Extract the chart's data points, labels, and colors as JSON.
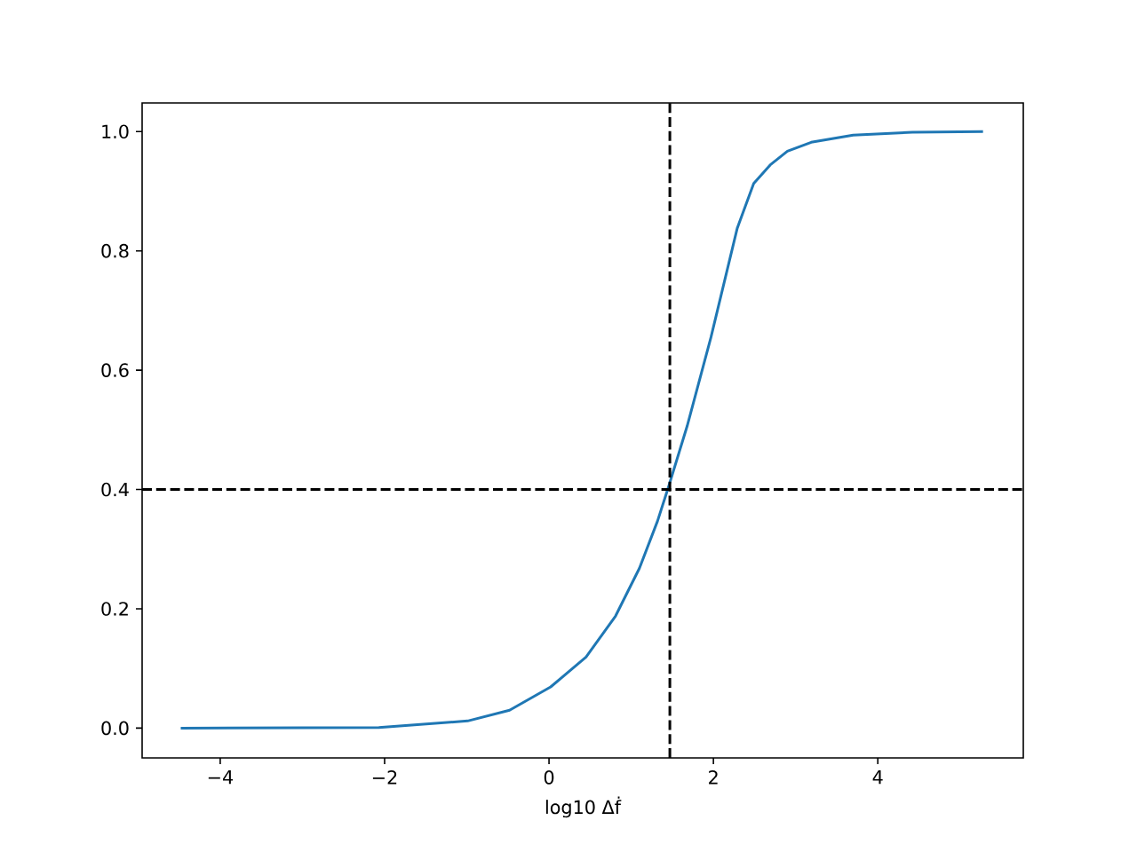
{
  "chart_data": {
    "type": "line",
    "xlabel": "log10 Δḟ",
    "x": [
      -4.48,
      -2.07,
      -0.99,
      -0.48,
      0.02,
      0.45,
      0.81,
      1.1,
      1.32,
      1.46,
      1.68,
      1.97,
      2.29,
      2.49,
      2.69,
      2.9,
      3.19,
      3.7,
      4.42,
      5.28
    ],
    "series": [
      {
        "color": "#1f77b4",
        "values": [
          0.0,
          0.001,
          0.012,
          0.03,
          0.069,
          0.119,
          0.188,
          0.268,
          0.347,
          0.407,
          0.506,
          0.655,
          0.838,
          0.913,
          0.944,
          0.967,
          0.982,
          0.994,
          0.999,
          1.0
        ]
      }
    ],
    "xlim": [
      -4.95,
      5.77
    ],
    "ylim": [
      -0.05,
      1.048
    ],
    "xticks": [
      {
        "value": -4,
        "label": "−4"
      },
      {
        "value": -2,
        "label": "−2"
      },
      0,
      2,
      4
    ],
    "yticks": [
      {
        "value": 0,
        "label": "0.0"
      },
      {
        "value": 0.2,
        "label": "0.2"
      },
      {
        "value": 0.4,
        "label": "0.4"
      },
      {
        "value": 0.6,
        "label": "0.6"
      },
      {
        "value": 0.8,
        "label": "0.8"
      },
      {
        "value": 1.0,
        "label": "1.0"
      }
    ],
    "ref_lines": [
      {
        "axis": "x",
        "value": 1.47,
        "color": "#000000",
        "line_style": "dashed"
      },
      {
        "axis": "y",
        "value": 0.4,
        "color": "#000000",
        "line_style": "dashed"
      }
    ],
    "marker": "none",
    "line_style": "solid"
  }
}
